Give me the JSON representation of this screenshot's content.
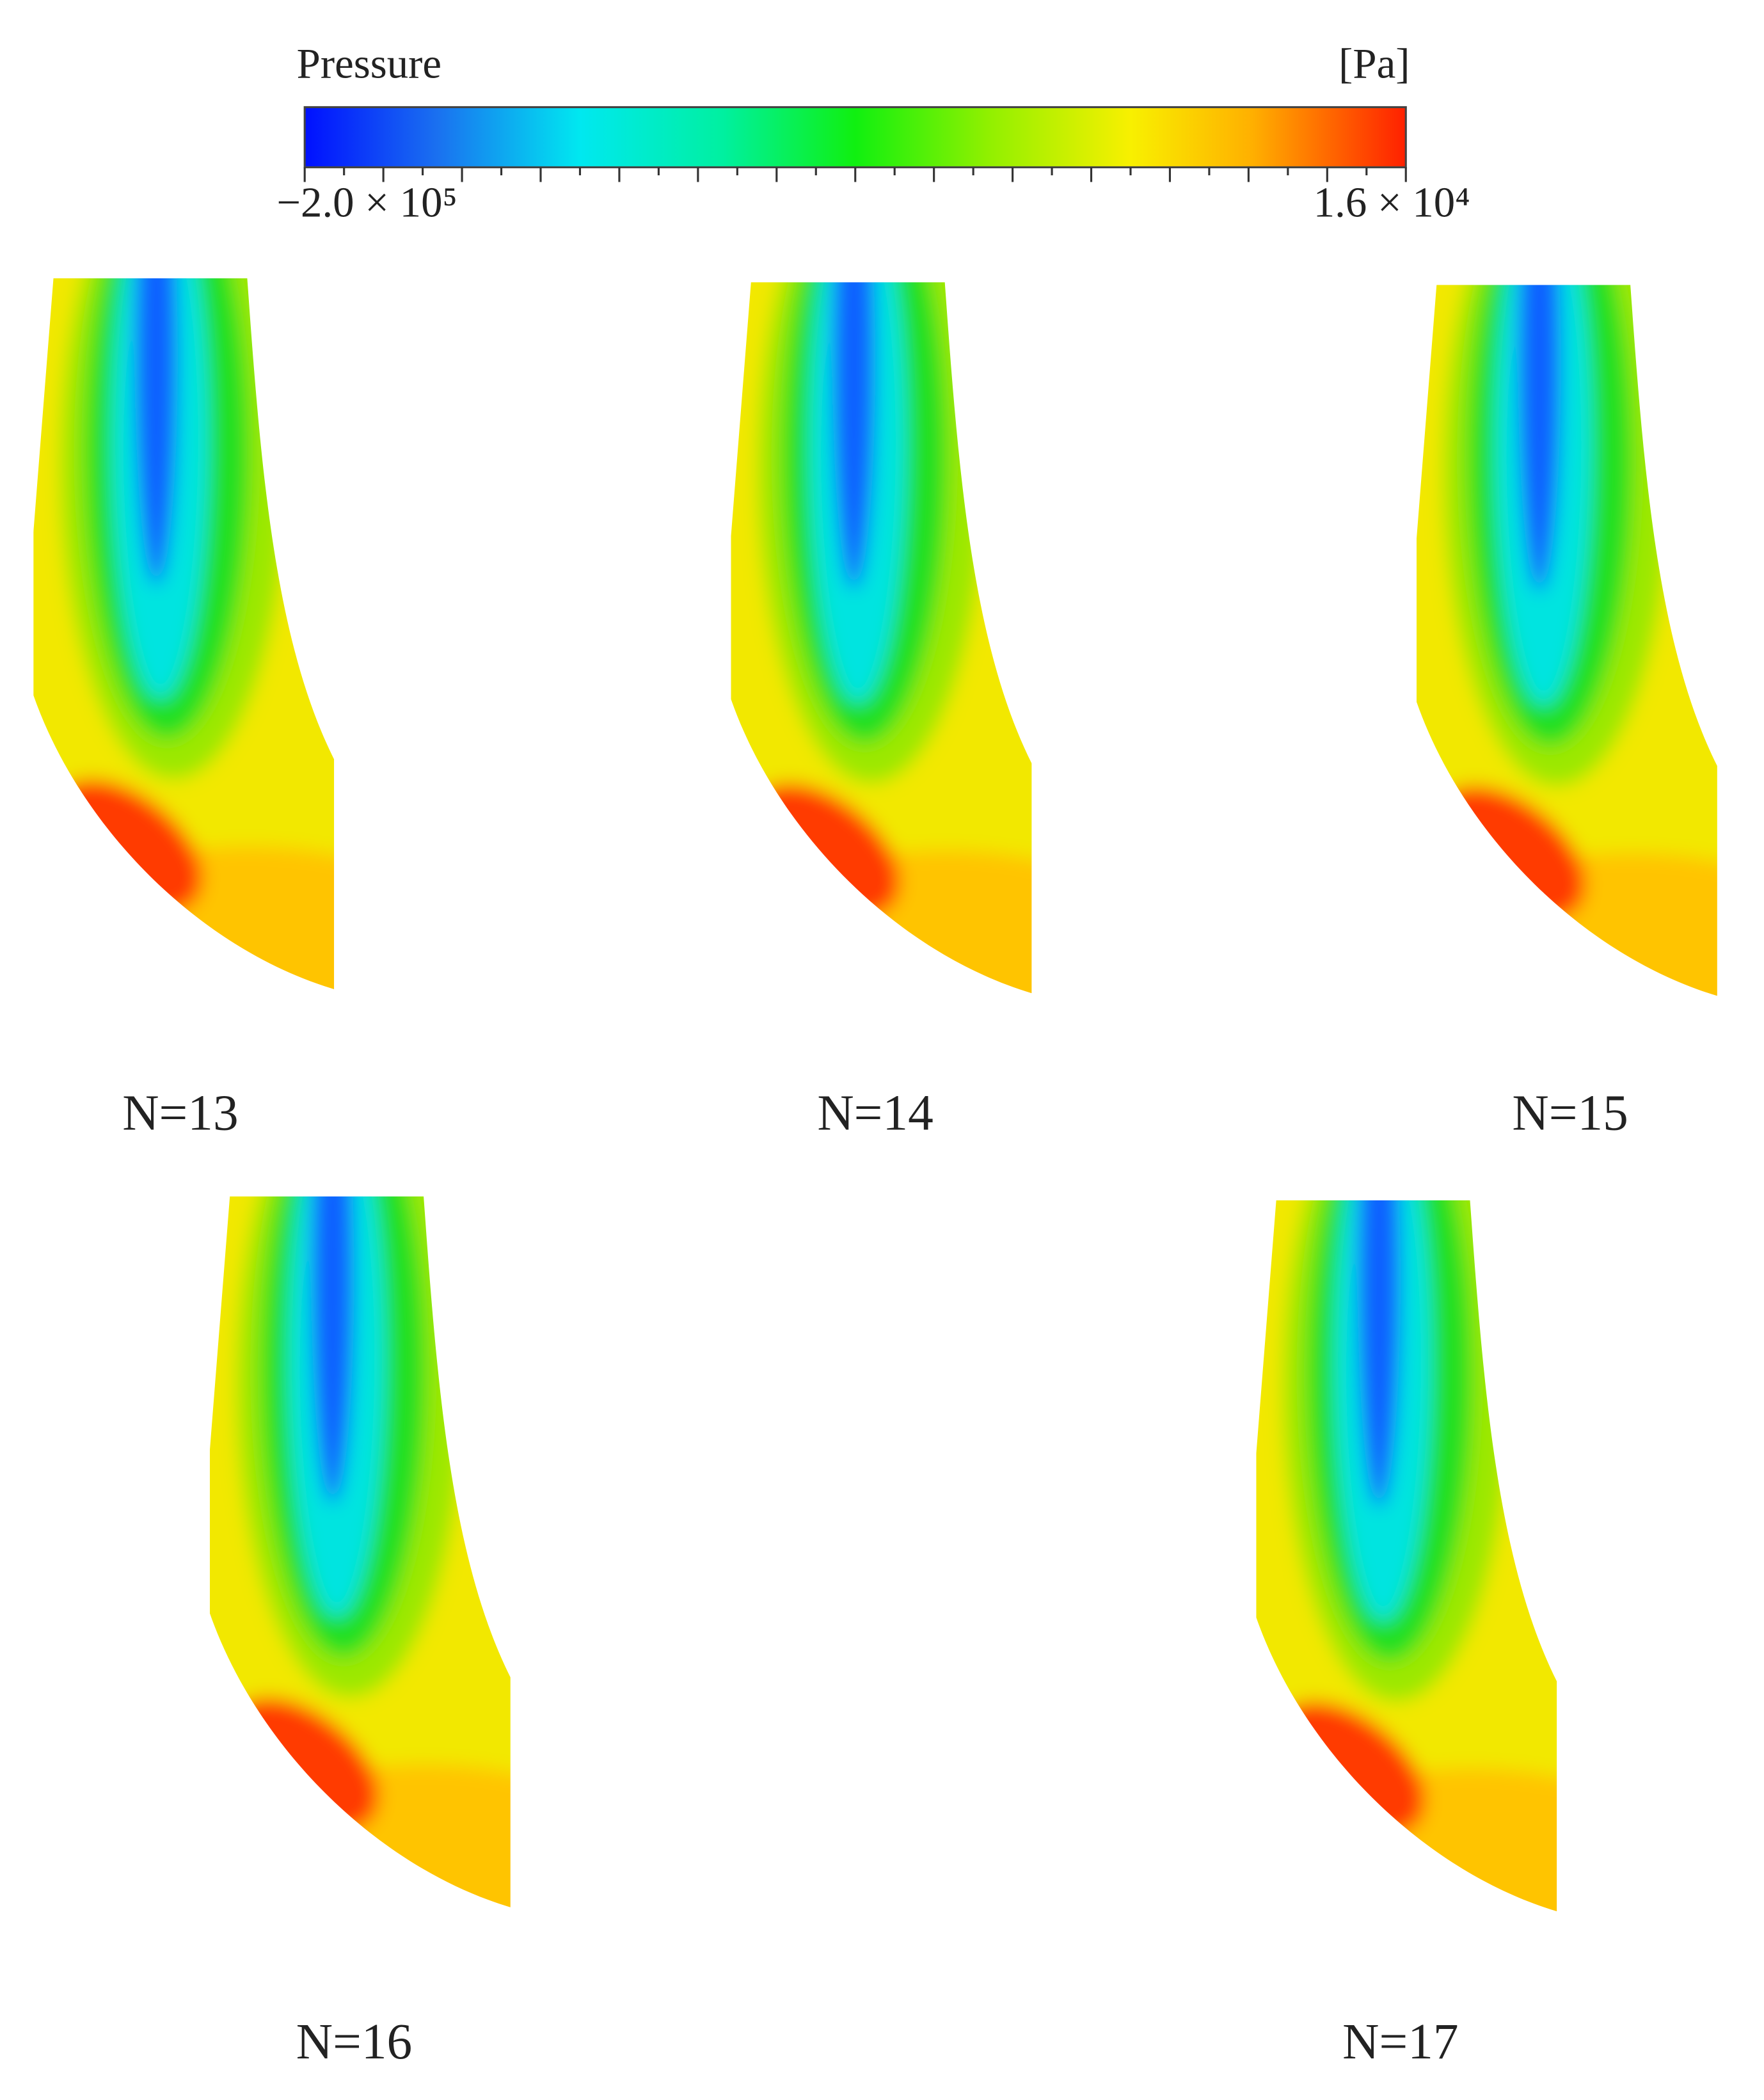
{
  "colorbar": {
    "title": "Pressure",
    "unit": "[Pa]",
    "min_label": "−2.0 × 10⁵",
    "max_label": "1.6 × 10⁴"
  },
  "panels": [
    {
      "label": "N=13"
    },
    {
      "label": "N=14"
    },
    {
      "label": "N=15"
    },
    {
      "label": "N=16"
    },
    {
      "label": "N=17"
    }
  ]
}
